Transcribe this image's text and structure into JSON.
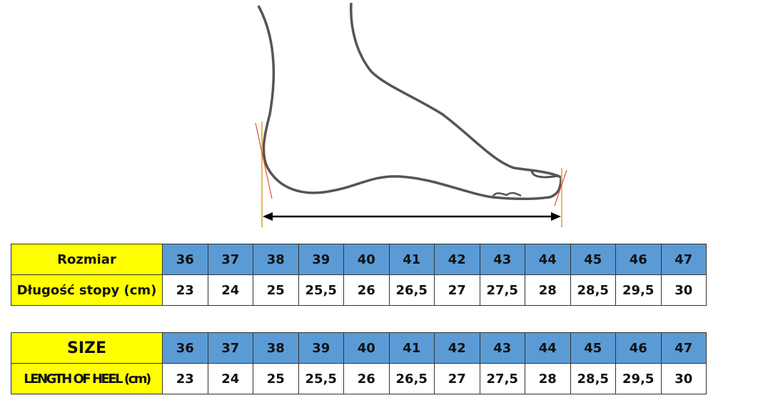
{
  "colors": {
    "label_bg": "#ffff00",
    "size_bg": "#5b9bd5",
    "foot_outline": "#555555",
    "measure_line": "#e8b860",
    "tangent_line": "#e05030"
  },
  "tables": [
    {
      "size_label": "Rozmiar",
      "length_label": "Długość stopy (cm)",
      "sizes": [
        "36",
        "37",
        "38",
        "39",
        "40",
        "41",
        "42",
        "43",
        "44",
        "45",
        "46",
        "47"
      ],
      "lengths": [
        "23",
        "24",
        "25",
        "25,5",
        "26",
        "26,5",
        "27",
        "27,5",
        "28",
        "28,5",
        "29,5",
        "30"
      ]
    },
    {
      "size_label": "SIZE",
      "length_label": "LENGTH OF HEEL (cm)",
      "sizes": [
        "36",
        "37",
        "38",
        "39",
        "40",
        "41",
        "42",
        "43",
        "44",
        "45",
        "46",
        "47"
      ],
      "lengths": [
        "23",
        "24",
        "25",
        "25,5",
        "26",
        "26,5",
        "27",
        "27,5",
        "28",
        "28,5",
        "29,5",
        "30"
      ]
    }
  ]
}
